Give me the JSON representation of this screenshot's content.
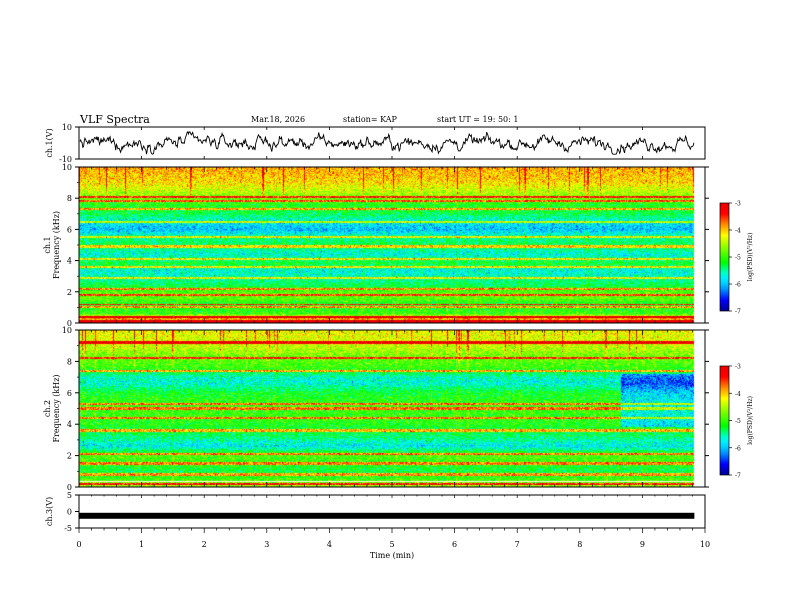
{
  "header": {
    "title": "VLF Spectra",
    "date": "Mar.18, 2026",
    "station": "station= KAP",
    "start": "start  UT =   19: 50: 1"
  },
  "colors": {
    "spectrogram_scale": [
      "#00008c",
      "#0000ff",
      "#00b4ff",
      "#00ffff",
      "#00ff00",
      "#ffff00",
      "#ff8c00",
      "#ff0000",
      "#ffffff"
    ],
    "waveform": "#000000",
    "axis": "#000000"
  },
  "chart_data": [
    {
      "type": "line",
      "id": "ch1-waveform",
      "ylabel": "ch.1(V)",
      "ylim": [
        -10,
        10
      ],
      "yticks": [
        "10",
        "-10"
      ],
      "xlim": [
        0,
        9.83
      ],
      "note": "noisy waveform oscillating roughly between -5 V and +5 V"
    },
    {
      "type": "heatmap",
      "id": "ch1-spectrogram",
      "ylabel_line1": "ch.1",
      "ylabel_line2": "Frequency (kHz)",
      "ylim": [
        0,
        10
      ],
      "yticks": [
        "0",
        "2",
        "4",
        "6",
        "8",
        "10"
      ],
      "xlim": [
        0,
        10
      ],
      "data_end_min": 9.83,
      "colorbar": {
        "label": "log(PSD)(V²/Hz)",
        "range": [
          -7,
          -3
        ],
        "ticks": [
          "-3",
          "-4",
          "-5",
          "-6",
          "-7"
        ]
      },
      "profile": [
        {
          "f": 0.0,
          "v": -4.2
        },
        {
          "f": 0.3,
          "v": -3.8
        },
        {
          "f": 0.6,
          "v": -5.0
        },
        {
          "f": 1.2,
          "v": -5.2
        },
        {
          "f": 1.6,
          "v": -4.8
        },
        {
          "f": 2.0,
          "v": -4.9
        },
        {
          "f": 2.4,
          "v": -5.3
        },
        {
          "f": 3.0,
          "v": -5.6
        },
        {
          "f": 3.4,
          "v": -5.7
        },
        {
          "f": 3.8,
          "v": -5.2
        },
        {
          "f": 4.4,
          "v": -5.7
        },
        {
          "f": 5.0,
          "v": -5.3
        },
        {
          "f": 5.5,
          "v": -5.5
        },
        {
          "f": 6.0,
          "v": -6.0
        },
        {
          "f": 6.4,
          "v": -5.8
        },
        {
          "f": 7.0,
          "v": -5.3
        },
        {
          "f": 7.6,
          "v": -5.1
        },
        {
          "f": 8.2,
          "v": -4.6
        },
        {
          "f": 9.0,
          "v": -4.1
        },
        {
          "f": 10.0,
          "v": -3.9
        }
      ],
      "lines_khz": [
        0.1,
        0.4,
        1.0,
        1.8,
        2.2,
        2.9,
        3.6,
        4.1,
        4.9,
        5.5,
        6.5,
        7.3,
        7.8,
        8.1
      ],
      "bright_row_khz": 1.2
    },
    {
      "type": "heatmap",
      "id": "ch2-spectrogram",
      "ylabel_line1": "ch.2",
      "ylabel_line2": "Frequency (kHz)",
      "ylim": [
        0,
        10
      ],
      "yticks": [
        "0",
        "2",
        "4",
        "6",
        "8",
        "10"
      ],
      "xlim": [
        0,
        10
      ],
      "data_end_min": 9.83,
      "change_at_min": 8.65,
      "colorbar": {
        "label": "log(PSD)(V²/Hz)",
        "range": [
          -7,
          -3
        ],
        "ticks": [
          "-3",
          "-4",
          "-5",
          "-6",
          "-7"
        ]
      },
      "profile": [
        {
          "f": 0.0,
          "v": -4.5
        },
        {
          "f": 0.4,
          "v": -4.9
        },
        {
          "f": 1.0,
          "v": -5.3
        },
        {
          "f": 1.6,
          "v": -5.0
        },
        {
          "f": 2.0,
          "v": -4.9
        },
        {
          "f": 2.6,
          "v": -5.8
        },
        {
          "f": 3.2,
          "v": -5.4
        },
        {
          "f": 4.0,
          "v": -5.1
        },
        {
          "f": 4.6,
          "v": -5.0
        },
        {
          "f": 5.2,
          "v": -5.0
        },
        {
          "f": 6.0,
          "v": -5.2
        },
        {
          "f": 6.6,
          "v": -5.7
        },
        {
          "f": 7.0,
          "v": -5.6
        },
        {
          "f": 7.6,
          "v": -5.0
        },
        {
          "f": 8.2,
          "v": -4.8
        },
        {
          "f": 9.0,
          "v": -4.4
        },
        {
          "f": 10.0,
          "v": -4.2
        }
      ],
      "lines_khz": [
        0.2,
        0.8,
        1.5,
        2.1,
        3.6,
        4.4,
        5.0,
        5.3,
        7.4,
        8.2,
        9.2
      ],
      "bright_row_khz": 0.35
    },
    {
      "type": "line",
      "id": "ch3-waveform",
      "ylabel": "ch.3(V)",
      "ylim": [
        -5,
        5
      ],
      "yticks": [
        "5",
        "0",
        "-5"
      ],
      "xlim": [
        0,
        10
      ],
      "level_v": -1.3,
      "xlabel": "Time (min)",
      "xticks": [
        "0",
        "1",
        "2",
        "3",
        "4",
        "5",
        "6",
        "7",
        "8",
        "9",
        "10"
      ]
    }
  ]
}
